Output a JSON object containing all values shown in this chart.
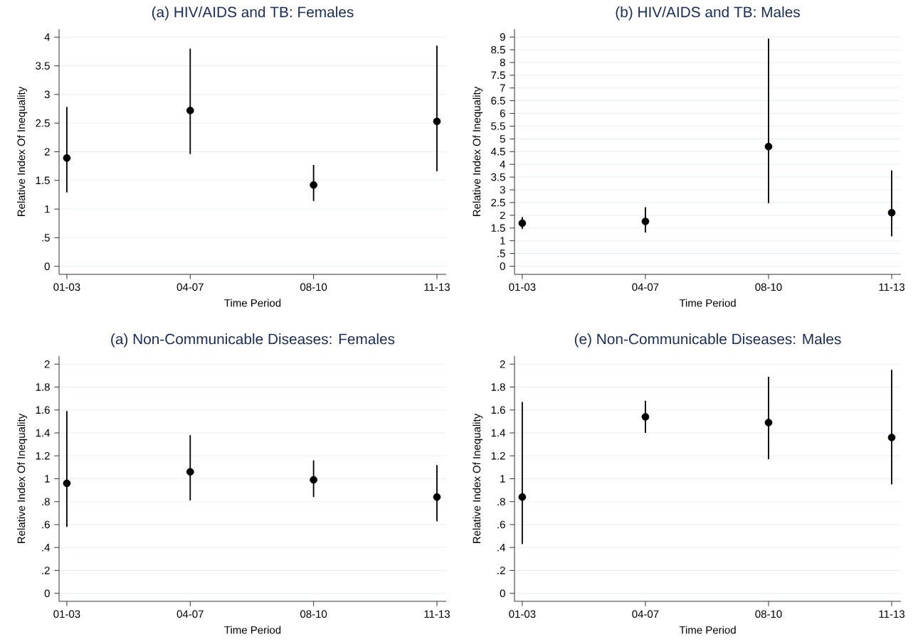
{
  "chart_data": [
    {
      "type": "scatter",
      "title": "(a) HIV/AIDS and TB: Females",
      "xlabel": "Time Period",
      "ylabel": "Relative Index Of Inequality",
      "categories": [
        "01-03",
        "04-07",
        "08-10",
        "11-13"
      ],
      "color": "#000000",
      "marker": "circle",
      "grid": "y",
      "values": [
        1.89,
        2.72,
        1.42,
        2.53
      ],
      "errors": [
        [
          1.29,
          2.78
        ],
        [
          1.96,
          3.8
        ],
        [
          1.14,
          1.77
        ],
        [
          1.66,
          3.85
        ]
      ],
      "ylim": [
        -0.14,
        4.14
      ],
      "yticks": [
        0,
        {
          "value": 0.5,
          "label": ".5"
        },
        1,
        1.5,
        2,
        2.5,
        3,
        3.5,
        4
      ]
    },
    {
      "type": "scatter",
      "title": "(b) HIV/AIDS and TB: Males",
      "xlabel": "Time Period",
      "ylabel": "Relative Index Of Inequality",
      "categories": [
        "01-03",
        "04-07",
        "08-10",
        "11-13"
      ],
      "color": "#000000",
      "marker": "circle",
      "grid": "y",
      "values": [
        1.69,
        1.76,
        4.7,
        2.1
      ],
      "errors": [
        [
          1.46,
          1.93
        ],
        [
          1.32,
          2.32
        ],
        [
          2.48,
          8.94
        ],
        [
          1.17,
          3.76
        ]
      ],
      "ylim": [
        -0.32,
        9.31
      ],
      "yticks": [
        0,
        {
          "value": 0.5,
          "label": ".5"
        },
        1,
        1.5,
        2,
        2.5,
        3,
        3.5,
        4,
        4.5,
        5,
        5.5,
        6,
        6.5,
        7,
        7.5,
        8,
        8.5,
        9
      ]
    },
    {
      "type": "scatter",
      "title": "(a) Non-Communicable Diseases: Females",
      "xlabel": "Time Period",
      "ylabel": "Relative Index Of Inequality",
      "categories": [
        "01-03",
        "04-07",
        "08-10",
        "11-13"
      ],
      "color": "#000000",
      "marker": "circle",
      "grid": "y",
      "values": [
        0.96,
        1.06,
        0.99,
        0.84
      ],
      "errors": [
        [
          0.58,
          1.59
        ],
        [
          0.81,
          1.38
        ],
        [
          0.84,
          1.16
        ],
        [
          0.63,
          1.12
        ]
      ],
      "ylim": [
        -0.07,
        2.07
      ],
      "yticks": [
        0,
        {
          "value": 0.2,
          "label": ".2"
        },
        {
          "value": 0.4,
          "label": ".4"
        },
        {
          "value": 0.6,
          "label": ".6"
        },
        {
          "value": 0.8,
          "label": ".8"
        },
        1,
        1.2,
        1.4,
        1.6,
        1.8,
        2
      ]
    },
    {
      "type": "scatter",
      "title": "(e) Non-Communicable Diseases: Males",
      "xlabel": "Time Period",
      "ylabel": "Relative Index Of Inequality",
      "categories": [
        "01-03",
        "04-07",
        "08-10",
        "11-13"
      ],
      "color": "#000000",
      "marker": "circle",
      "grid": "y",
      "values": [
        0.84,
        1.54,
        1.49,
        1.36
      ],
      "errors": [
        [
          0.43,
          1.67
        ],
        [
          1.4,
          1.68
        ],
        [
          1.17,
          1.89
        ],
        [
          0.95,
          1.95
        ]
      ],
      "ylim": [
        -0.07,
        2.07
      ],
      "yticks": [
        0,
        {
          "value": 0.2,
          "label": ".2"
        },
        {
          "value": 0.4,
          "label": ".4"
        },
        {
          "value": 0.6,
          "label": ".6"
        },
        {
          "value": 0.8,
          "label": ".8"
        },
        1,
        1.2,
        1.4,
        1.6,
        1.8,
        2
      ]
    }
  ]
}
